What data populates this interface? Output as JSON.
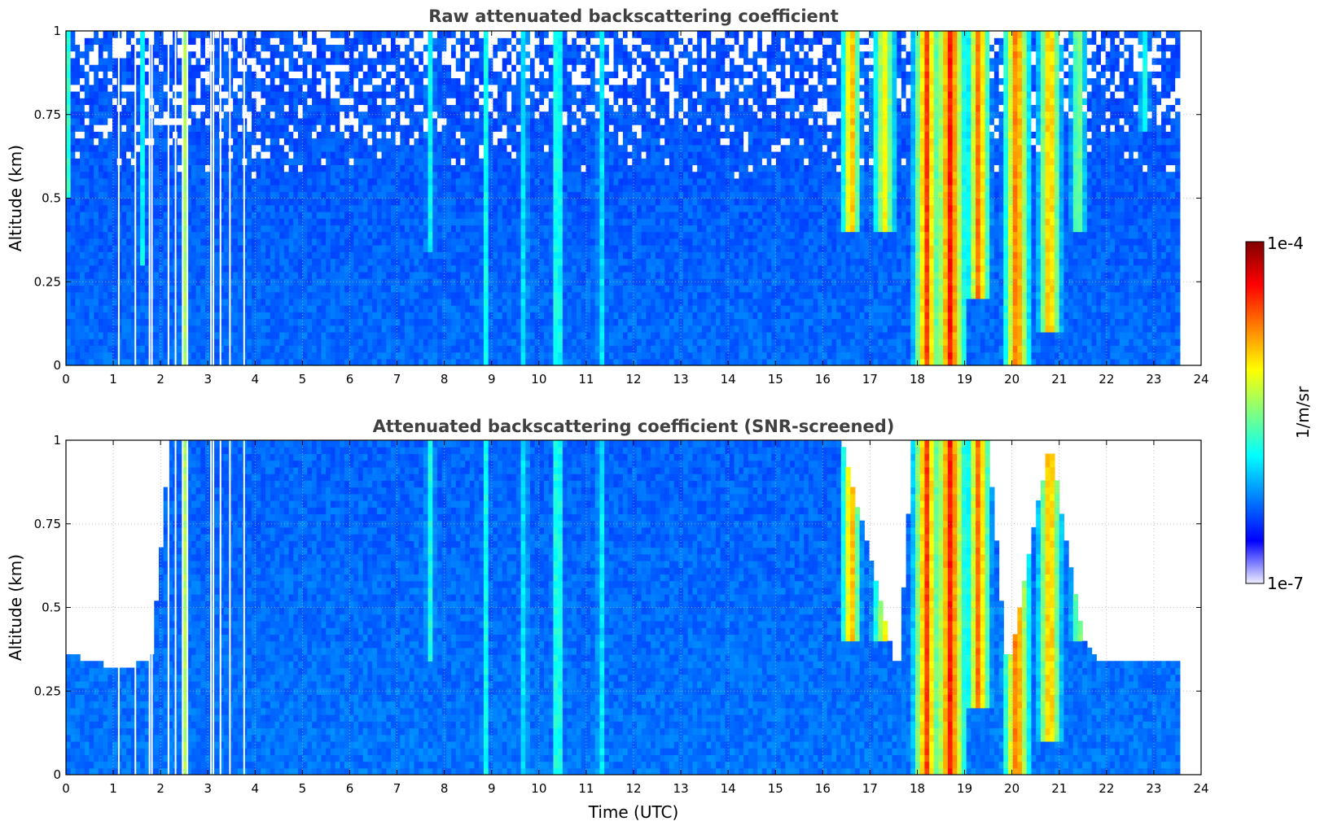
{
  "chart_data": [
    {
      "type": "heatmap",
      "title": "Raw attenuated backscattering coefficient",
      "xlabel": "",
      "ylabel": "Altitude (km)",
      "xlim": [
        0,
        24
      ],
      "ylim": [
        0,
        1
      ],
      "x_ticks": [
        "0",
        "1",
        "2",
        "3",
        "4",
        "5",
        "6",
        "7",
        "8",
        "9",
        "10",
        "11",
        "12",
        "13",
        "14",
        "15",
        "16",
        "17",
        "18",
        "19",
        "20",
        "21",
        "22",
        "23",
        "24"
      ],
      "y_ticks": [
        "0",
        "0.25",
        "0.5",
        "0.75",
        "1"
      ],
      "grid": true,
      "data_end_time": 23.55,
      "background_level": 0.2,
      "no_data_columns": [
        1.1,
        1.45,
        1.75,
        1.8,
        2.15,
        2.3,
        2.45,
        2.55,
        3.05,
        3.1,
        3.25,
        3.45,
        3.75
      ],
      "plumes": [
        {
          "time": 0.05,
          "width": 0.07,
          "level": 0.42,
          "top_km": 1.0,
          "bottom_km": 0.5
        },
        {
          "time": 1.6,
          "width": 0.06,
          "level": 0.45,
          "top_km": 1.0,
          "bottom_km": 0.3
        },
        {
          "time": 2.5,
          "width": 0.08,
          "level": 0.55,
          "top_km": 1.0,
          "bottom_km": 0.0
        },
        {
          "time": 7.7,
          "width": 0.12,
          "level": 0.38,
          "top_km": 1.0,
          "bottom_km": 0.35
        },
        {
          "time": 8.9,
          "width": 0.07,
          "level": 0.45,
          "top_km": 1.0,
          "bottom_km": 0.0
        },
        {
          "time": 9.7,
          "width": 0.08,
          "level": 0.45,
          "top_km": 1.0,
          "bottom_km": 0.0
        },
        {
          "time": 10.4,
          "width": 0.09,
          "level": 0.6,
          "top_km": 1.0,
          "bottom_km": 0.0
        },
        {
          "time": 11.3,
          "width": 0.08,
          "level": 0.45,
          "top_km": 1.0,
          "bottom_km": 0.0
        },
        {
          "time": 16.6,
          "width": 0.25,
          "level": 0.75,
          "top_km": 1.0,
          "bottom_km": 0.4
        },
        {
          "time": 17.3,
          "width": 0.3,
          "level": 0.65,
          "top_km": 1.0,
          "bottom_km": 0.4
        },
        {
          "time": 18.2,
          "width": 0.35,
          "level": 0.82,
          "top_km": 1.0,
          "bottom_km": 0.0
        },
        {
          "time": 18.7,
          "width": 0.4,
          "level": 0.87,
          "top_km": 1.0,
          "bottom_km": 0.0
        },
        {
          "time": 19.3,
          "width": 0.3,
          "level": 0.8,
          "top_km": 1.0,
          "bottom_km": 0.2
        },
        {
          "time": 20.1,
          "width": 0.35,
          "level": 0.8,
          "top_km": 1.0,
          "bottom_km": 0.0
        },
        {
          "time": 20.8,
          "width": 0.3,
          "level": 0.75,
          "top_km": 1.0,
          "bottom_km": 0.1
        },
        {
          "time": 21.4,
          "width": 0.2,
          "level": 0.55,
          "top_km": 1.0,
          "bottom_km": 0.4
        },
        {
          "time": 22.8,
          "width": 0.15,
          "level": 0.4,
          "top_km": 1.0,
          "bottom_km": 0.7
        }
      ]
    },
    {
      "type": "heatmap",
      "title": "Attenuated backscattering coefficient (SNR-screened)",
      "xlabel": "Time (UTC)",
      "ylabel": "Altitude (km)",
      "xlim": [
        0,
        24
      ],
      "ylim": [
        0,
        1
      ],
      "x_ticks": [
        "0",
        "1",
        "2",
        "3",
        "4",
        "5",
        "6",
        "7",
        "8",
        "9",
        "10",
        "11",
        "12",
        "13",
        "14",
        "15",
        "16",
        "17",
        "18",
        "19",
        "20",
        "21",
        "22",
        "23",
        "24"
      ],
      "y_ticks": [
        "0",
        "0.25",
        "0.5",
        "0.75",
        "1"
      ],
      "grid": true,
      "data_end_time": 23.55,
      "background_level": 0.22,
      "screened_top_km": [
        [
          0.0,
          0.36
        ],
        [
          0.5,
          0.34
        ],
        [
          1.0,
          0.32
        ],
        [
          1.5,
          0.33
        ],
        [
          1.8,
          0.34
        ],
        [
          2.2,
          1.0
        ],
        [
          15.9,
          1.0
        ],
        [
          16.4,
          1.0
        ],
        [
          17.6,
          0.3
        ],
        [
          17.9,
          1.0
        ],
        [
          19.5,
          1.0
        ],
        [
          19.9,
          0.3
        ],
        [
          20.8,
          1.0
        ],
        [
          21.5,
          0.4
        ],
        [
          21.8,
          0.35
        ],
        [
          22.2,
          0.33
        ],
        [
          23.0,
          0.34
        ],
        [
          23.55,
          0.35
        ]
      ],
      "no_data_columns": [
        1.1,
        1.45,
        1.75,
        1.8,
        2.15,
        2.3,
        2.45,
        2.55,
        3.05,
        3.1,
        3.25,
        3.45,
        3.75
      ],
      "plumes": [
        {
          "time": 2.5,
          "width": 0.08,
          "level": 0.55,
          "top_km": 1.0,
          "bottom_km": 0.0
        },
        {
          "time": 7.7,
          "width": 0.12,
          "level": 0.4,
          "top_km": 1.0,
          "bottom_km": 0.35
        },
        {
          "time": 8.9,
          "width": 0.07,
          "level": 0.45,
          "top_km": 1.0,
          "bottom_km": 0.0
        },
        {
          "time": 9.7,
          "width": 0.08,
          "level": 0.45,
          "top_km": 1.0,
          "bottom_km": 0.0
        },
        {
          "time": 10.4,
          "width": 0.09,
          "level": 0.6,
          "top_km": 1.0,
          "bottom_km": 0.0
        },
        {
          "time": 11.3,
          "width": 0.08,
          "level": 0.45,
          "top_km": 1.0,
          "bottom_km": 0.0
        },
        {
          "time": 16.6,
          "width": 0.25,
          "level": 0.75,
          "top_km": 1.0,
          "bottom_km": 0.4
        },
        {
          "time": 17.3,
          "width": 0.3,
          "level": 0.65,
          "top_km": 1.0,
          "bottom_km": 0.4
        },
        {
          "time": 18.2,
          "width": 0.35,
          "level": 0.82,
          "top_km": 1.0,
          "bottom_km": 0.0
        },
        {
          "time": 18.7,
          "width": 0.4,
          "level": 0.87,
          "top_km": 1.0,
          "bottom_km": 0.0
        },
        {
          "time": 19.3,
          "width": 0.3,
          "level": 0.8,
          "top_km": 1.0,
          "bottom_km": 0.2
        },
        {
          "time": 20.1,
          "width": 0.35,
          "level": 0.8,
          "top_km": 1.0,
          "bottom_km": 0.0
        },
        {
          "time": 20.8,
          "width": 0.3,
          "level": 0.75,
          "top_km": 1.0,
          "bottom_km": 0.1
        },
        {
          "time": 21.4,
          "width": 0.2,
          "level": 0.55,
          "top_km": 1.0,
          "bottom_km": 0.4
        }
      ]
    }
  ],
  "colorbar": {
    "label": "1/m/sr",
    "min_label": "1e-7",
    "max_label": "1e-4",
    "colormap": "jet",
    "colors": [
      "#eeeeff",
      "#0000ff",
      "#0080ff",
      "#00ffff",
      "#80ff80",
      "#ffff00",
      "#ff8000",
      "#ff0000",
      "#800000"
    ]
  }
}
